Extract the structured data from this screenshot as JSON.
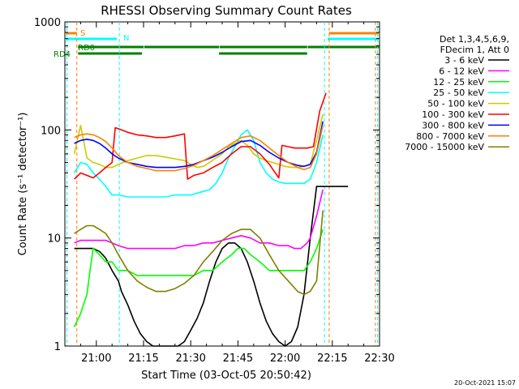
{
  "chart_data": {
    "type": "line",
    "title": "RHESSI Observing Summary Count Rates",
    "xlabel": "Start Time (03-Oct-05 20:50:42)",
    "ylabel": "Count Rate (s⁻¹ detector⁻¹)",
    "xlim_minutes_from_2050": [
      0,
      100
    ],
    "ylim": [
      1,
      1000
    ],
    "yscale": "log",
    "grid": false,
    "legend_placement": "right",
    "x_ticks": [
      "21:00",
      "21:15",
      "21:30",
      "21:45",
      "22:00",
      "22:15",
      "22:30"
    ],
    "x_tick_minutes": [
      10,
      25,
      40,
      55,
      70,
      85,
      100
    ],
    "y_ticks": [
      "1",
      "10",
      "100",
      "1000"
    ],
    "y_tick_values": [
      1,
      10,
      100,
      1000
    ],
    "legend_header": [
      "Det 1,3,4,5,6,9,",
      "FDecim 1, Att 0"
    ],
    "timestamp": "20-Oct-2021 15:07",
    "flag_labels": {
      "s": "S",
      "n": "N",
      "rd0": "RD0",
      "rd4": "RD4"
    },
    "series": [
      {
        "name": "3 - 6 keV",
        "color": "#000000",
        "x": [
          3,
          5,
          7,
          9,
          11,
          12,
          13,
          15,
          17,
          18,
          20,
          22,
          24,
          26,
          28,
          30,
          32,
          34,
          36,
          38,
          40,
          42,
          44,
          46,
          48,
          50,
          52,
          54,
          56,
          58,
          60,
          62,
          64,
          66,
          68,
          70,
          72,
          74,
          76,
          78,
          80,
          82,
          84,
          86,
          88,
          90
        ],
        "y": [
          8,
          8,
          8,
          8,
          7.5,
          7,
          6.5,
          5,
          4,
          3.2,
          2.4,
          1.7,
          1.3,
          1.1,
          1.0,
          1.0,
          1.0,
          1.0,
          1.0,
          1.1,
          1.4,
          1.8,
          2.5,
          4,
          6,
          8,
          9,
          9,
          8,
          6,
          4,
          2.5,
          1.7,
          1.3,
          1.1,
          1.0,
          1.1,
          1.5,
          3,
          10,
          30,
          30,
          30,
          30,
          30,
          30
        ]
      },
      {
        "name": "6 - 12 keV",
        "color": "#ff00ff",
        "x": [
          3,
          5,
          7,
          9,
          11,
          13,
          15,
          17,
          20,
          23,
          26,
          29,
          32,
          35,
          38,
          41,
          44,
          47,
          50,
          53,
          56,
          59,
          62,
          65,
          68,
          71,
          73,
          75,
          77,
          78,
          80,
          82
        ],
        "y": [
          9,
          9.5,
          9.5,
          9.5,
          9.5,
          9.5,
          9,
          8.5,
          8,
          8,
          8,
          8,
          8,
          8,
          8.5,
          8.5,
          9,
          9,
          9.5,
          10,
          10.5,
          10,
          9,
          9,
          8.5,
          8.5,
          8,
          8,
          9,
          10,
          16,
          28
        ]
      },
      {
        "name": "12 - 25 keV",
        "color": "#00ff00",
        "x": [
          3,
          5,
          7,
          8,
          9,
          11,
          13,
          15,
          17,
          20,
          23,
          26,
          29,
          32,
          35,
          38,
          41,
          44,
          47,
          50,
          53,
          55,
          57,
          59,
          62,
          65,
          68,
          71,
          74,
          76,
          78,
          80,
          82
        ],
        "y": [
          1.5,
          2,
          3,
          5,
          8,
          7,
          6,
          6,
          5,
          5,
          4.5,
          4.5,
          4.5,
          4.5,
          4.5,
          4.5,
          4.5,
          5,
          5,
          6,
          7,
          8,
          8,
          7,
          6,
          5,
          5,
          5,
          5,
          5,
          6,
          8,
          12
        ]
      },
      {
        "name": "25 - 50 keV",
        "color": "#00ffff",
        "x": [
          3,
          5,
          7,
          9,
          11,
          13,
          15,
          17,
          20,
          23,
          26,
          29,
          32,
          35,
          38,
          40,
          42,
          44,
          46,
          48,
          50,
          52,
          54,
          56,
          58,
          60,
          62,
          64,
          66,
          68,
          70,
          72,
          74,
          76,
          78,
          80,
          82
        ],
        "y": [
          40,
          50,
          48,
          40,
          35,
          30,
          25,
          25,
          24,
          24,
          24,
          24,
          24,
          25,
          25,
          25,
          26,
          27,
          28,
          32,
          40,
          55,
          70,
          90,
          100,
          80,
          50,
          40,
          35,
          33,
          32,
          32,
          32,
          32,
          35,
          50,
          90
        ]
      },
      {
        "name": "50 - 100 keV",
        "color": "#cccc00",
        "x": [
          3,
          5,
          7,
          9,
          11,
          13,
          15,
          17,
          20,
          23,
          26,
          29,
          32,
          35,
          38,
          40,
          42,
          44,
          46,
          48,
          50,
          52,
          54,
          56,
          58,
          60,
          62,
          64,
          66,
          68,
          70,
          72,
          74,
          76,
          78,
          80,
          82
        ],
        "y": [
          60,
          110,
          55,
          50,
          48,
          45,
          45,
          48,
          52,
          55,
          58,
          58,
          56,
          54,
          52,
          48,
          45,
          46,
          50,
          55,
          60,
          70,
          75,
          80,
          72,
          60,
          55,
          52,
          50,
          48,
          46,
          45,
          45,
          46,
          48,
          80,
          140
        ]
      },
      {
        "name": "100 - 300 keV",
        "color": "#ff0000",
        "x": [
          3,
          5,
          7,
          9,
          11,
          13,
          15,
          16,
          18,
          20,
          23,
          26,
          29,
          32,
          35,
          38,
          39,
          41,
          44,
          47,
          50,
          53,
          56,
          59,
          62,
          65,
          68,
          69,
          71,
          73,
          75,
          77,
          79,
          81,
          83
        ],
        "y": [
          35,
          40,
          38,
          36,
          40,
          45,
          50,
          105,
          100,
          95,
          90,
          88,
          85,
          85,
          88,
          92,
          35,
          38,
          40,
          45,
          50,
          60,
          70,
          70,
          60,
          48,
          36,
          72,
          70,
          68,
          68,
          68,
          70,
          150,
          220
        ]
      },
      {
        "name": "300 - 800 keV",
        "color": "#0000ff",
        "x": [
          3,
          5,
          7,
          9,
          11,
          13,
          15,
          17,
          20,
          23,
          26,
          29,
          32,
          35,
          38,
          41,
          44,
          47,
          50,
          53,
          56,
          59,
          62,
          65,
          68,
          71,
          74,
          76,
          78,
          80,
          82
        ],
        "y": [
          75,
          80,
          82,
          80,
          75,
          68,
          60,
          55,
          50,
          48,
          46,
          45,
          45,
          45,
          46,
          48,
          52,
          56,
          62,
          70,
          78,
          80,
          72,
          62,
          55,
          50,
          47,
          46,
          48,
          62,
          120
        ]
      },
      {
        "name": "800 - 7000 keV",
        "color": "#ff8000",
        "x": [
          3,
          5,
          7,
          9,
          11,
          13,
          15,
          17,
          20,
          23,
          26,
          29,
          32,
          35,
          38,
          41,
          44,
          47,
          50,
          53,
          56,
          59,
          62,
          65,
          68,
          71,
          74,
          76,
          78,
          80,
          82
        ],
        "y": [
          85,
          90,
          92,
          90,
          85,
          78,
          68,
          58,
          50,
          46,
          44,
          42,
          42,
          42,
          44,
          47,
          52,
          58,
          66,
          75,
          85,
          88,
          80,
          68,
          58,
          50,
          45,
          43,
          45,
          60,
          110
        ]
      },
      {
        "name": "7000 - 15000 keV",
        "color": "#808000",
        "x": [
          3,
          5,
          7,
          9,
          11,
          13,
          15,
          17,
          20,
          23,
          26,
          29,
          32,
          35,
          38,
          41,
          44,
          47,
          50,
          53,
          56,
          59,
          62,
          65,
          68,
          71,
          74,
          76,
          78,
          80,
          82
        ],
        "y": [
          11,
          12,
          13,
          13,
          12,
          11,
          9,
          7,
          5,
          4,
          3.5,
          3.2,
          3.2,
          3.4,
          3.8,
          4.5,
          6,
          7.5,
          9.5,
          11,
          12,
          12,
          10,
          7,
          5,
          4,
          3.2,
          3,
          3.2,
          4,
          18
        ]
      }
    ],
    "vertical_lines": [
      {
        "minute": 0.7,
        "color": "#00ffff"
      },
      {
        "minute": 3.8,
        "color": "#ff8000"
      },
      {
        "minute": 17.3,
        "color": "#00ffff"
      },
      {
        "minute": 82.5,
        "color": "#00ffff"
      },
      {
        "minute": 84.0,
        "color": "#ff8000"
      },
      {
        "minute": 98.7,
        "color": "#ff8000"
      },
      {
        "minute": 99.4,
        "color": "#00ffff"
      }
    ],
    "flag_bars": {
      "s": [
        [
          0,
          3.8
        ],
        [
          84.0,
          100
        ]
      ],
      "n": [
        [
          0,
          16.5
        ],
        [
          83.5,
          100
        ]
      ],
      "rd0": [
        [
          4.2,
          25
        ],
        [
          25.2,
          49
        ],
        [
          49.2,
          77
        ],
        [
          77.2,
          100
        ]
      ],
      "rd4": [
        [
          4.2,
          24.5
        ],
        [
          49,
          77
        ]
      ]
    }
  }
}
